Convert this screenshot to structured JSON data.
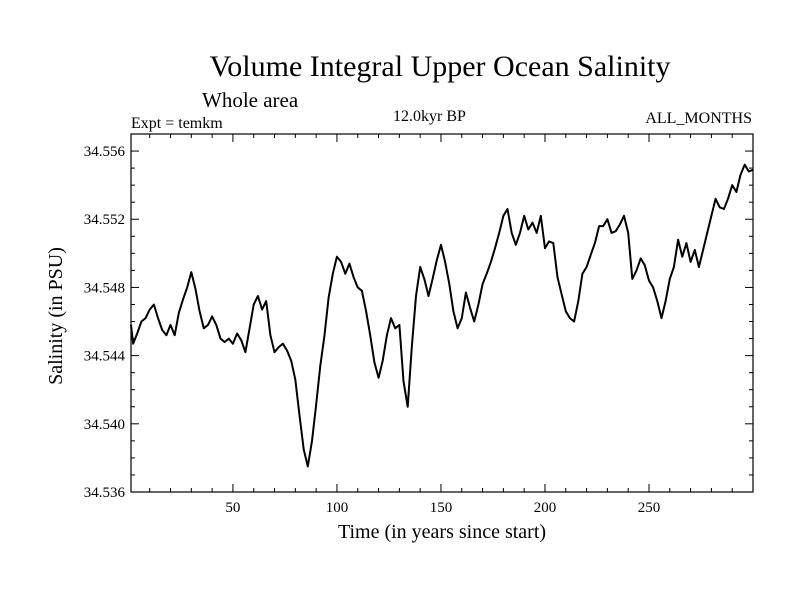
{
  "chart_data": {
    "type": "line",
    "title": "Volume Integral Upper Ocean Salinity",
    "subtitle": "Whole area",
    "left_string": "Expt = temkm",
    "center_string": "12.0kyr BP",
    "right_string": "ALL_MONTHS",
    "xlabel": "Time (in years since start)",
    "ylabel": "Salinity (in PSU)",
    "xlim": [
      1,
      300
    ],
    "ylim": [
      34.536,
      34.557
    ],
    "x_ticks": [
      50,
      100,
      150,
      200,
      250
    ],
    "x_tick_labels": [
      "50",
      "100",
      "150",
      "200",
      "250"
    ],
    "y_ticks": [
      34.536,
      34.54,
      34.544,
      34.548,
      34.552,
      34.556
    ],
    "y_tick_labels": [
      "34.536",
      "34.540",
      "34.544",
      "34.548",
      "34.552",
      "34.556"
    ],
    "series": [
      {
        "name": "salinity",
        "points": [
          [
            1,
            34.5458
          ],
          [
            2,
            34.5447
          ],
          [
            4,
            34.5453
          ],
          [
            6,
            34.546
          ],
          [
            8,
            34.5462
          ],
          [
            10,
            34.5467
          ],
          [
            12,
            34.547
          ],
          [
            14,
            34.5462
          ],
          [
            16,
            34.5455
          ],
          [
            18,
            34.5452
          ],
          [
            20,
            34.5458
          ],
          [
            22,
            34.5452
          ],
          [
            24,
            34.5465
          ],
          [
            26,
            34.5473
          ],
          [
            28,
            34.548
          ],
          [
            30,
            34.5489
          ],
          [
            32,
            34.5479
          ],
          [
            34,
            34.5466
          ],
          [
            36,
            34.5456
          ],
          [
            38,
            34.5458
          ],
          [
            40,
            34.5463
          ],
          [
            42,
            34.5458
          ],
          [
            44,
            34.545
          ],
          [
            46,
            34.5448
          ],
          [
            48,
            34.545
          ],
          [
            50,
            34.5447
          ],
          [
            52,
            34.5453
          ],
          [
            54,
            34.5449
          ],
          [
            56,
            34.5442
          ],
          [
            58,
            34.5456
          ],
          [
            60,
            34.547
          ],
          [
            62,
            34.5475
          ],
          [
            64,
            34.5467
          ],
          [
            66,
            34.5472
          ],
          [
            68,
            34.5452
          ],
          [
            70,
            34.5442
          ],
          [
            72,
            34.5445
          ],
          [
            74,
            34.5447
          ],
          [
            76,
            34.5443
          ],
          [
            78,
            34.5437
          ],
          [
            80,
            34.5426
          ],
          [
            82,
            34.5405
          ],
          [
            84,
            34.5385
          ],
          [
            86,
            34.5375
          ],
          [
            88,
            34.539
          ],
          [
            90,
            34.5411
          ],
          [
            92,
            34.5434
          ],
          [
            94,
            34.5452
          ],
          [
            96,
            34.5474
          ],
          [
            98,
            34.5488
          ],
          [
            100,
            34.5498
          ],
          [
            102,
            34.5495
          ],
          [
            104,
            34.5488
          ],
          [
            106,
            34.5494
          ],
          [
            108,
            34.5486
          ],
          [
            110,
            34.548
          ],
          [
            112,
            34.5478
          ],
          [
            114,
            34.5466
          ],
          [
            116,
            34.5452
          ],
          [
            118,
            34.5436
          ],
          [
            120,
            34.5427
          ],
          [
            122,
            34.5437
          ],
          [
            124,
            34.5452
          ],
          [
            126,
            34.5462
          ],
          [
            128,
            34.5456
          ],
          [
            130,
            34.5458
          ],
          [
            132,
            34.5425
          ],
          [
            134,
            34.541
          ],
          [
            136,
            34.5445
          ],
          [
            138,
            34.5475
          ],
          [
            140,
            34.5492
          ],
          [
            142,
            34.5485
          ],
          [
            144,
            34.5475
          ],
          [
            146,
            34.5485
          ],
          [
            148,
            34.5496
          ],
          [
            150,
            34.5505
          ],
          [
            152,
            34.5495
          ],
          [
            154,
            34.5482
          ],
          [
            156,
            34.5466
          ],
          [
            158,
            34.5456
          ],
          [
            160,
            34.5462
          ],
          [
            162,
            34.5477
          ],
          [
            164,
            34.5468
          ],
          [
            166,
            34.546
          ],
          [
            168,
            34.547
          ],
          [
            170,
            34.5482
          ],
          [
            172,
            34.5488
          ],
          [
            174,
            34.5495
          ],
          [
            176,
            34.5503
          ],
          [
            178,
            34.5512
          ],
          [
            180,
            34.5522
          ],
          [
            182,
            34.5526
          ],
          [
            184,
            34.5512
          ],
          [
            186,
            34.5505
          ],
          [
            188,
            34.5512
          ],
          [
            190,
            34.5522
          ],
          [
            192,
            34.5514
          ],
          [
            194,
            34.5518
          ],
          [
            196,
            34.5512
          ],
          [
            198,
            34.5522
          ],
          [
            200,
            34.5503
          ],
          [
            202,
            34.5507
          ],
          [
            204,
            34.5506
          ],
          [
            206,
            34.5486
          ],
          [
            208,
            34.5476
          ],
          [
            210,
            34.5466
          ],
          [
            212,
            34.5462
          ],
          [
            214,
            34.546
          ],
          [
            216,
            34.5472
          ],
          [
            218,
            34.5488
          ],
          [
            220,
            34.5492
          ],
          [
            222,
            34.5499
          ],
          [
            224,
            34.5506
          ],
          [
            226,
            34.5516
          ],
          [
            228,
            34.5516
          ],
          [
            230,
            34.552
          ],
          [
            232,
            34.5512
          ],
          [
            234,
            34.5513
          ],
          [
            236,
            34.5517
          ],
          [
            238,
            34.5522
          ],
          [
            240,
            34.5512
          ],
          [
            242,
            34.5485
          ],
          [
            244,
            34.549
          ],
          [
            246,
            34.5497
          ],
          [
            248,
            34.5493
          ],
          [
            250,
            34.5484
          ],
          [
            252,
            34.548
          ],
          [
            254,
            34.5472
          ],
          [
            256,
            34.5462
          ],
          [
            258,
            34.5472
          ],
          [
            260,
            34.5485
          ],
          [
            262,
            34.5492
          ],
          [
            264,
            34.5508
          ],
          [
            266,
            34.5498
          ],
          [
            268,
            34.5506
          ],
          [
            270,
            34.5495
          ],
          [
            272,
            34.5502
          ],
          [
            274,
            34.5492
          ],
          [
            276,
            34.5502
          ],
          [
            278,
            34.5512
          ],
          [
            280,
            34.5522
          ],
          [
            282,
            34.5532
          ],
          [
            284,
            34.5527
          ],
          [
            286,
            34.5526
          ],
          [
            288,
            34.5532
          ],
          [
            290,
            34.554
          ],
          [
            292,
            34.5536
          ],
          [
            294,
            34.5546
          ],
          [
            296,
            34.5552
          ],
          [
            298,
            34.5548
          ],
          [
            300,
            34.5549
          ]
        ]
      }
    ]
  },
  "colors": {
    "line": "#000000",
    "background": "#ffffff"
  }
}
